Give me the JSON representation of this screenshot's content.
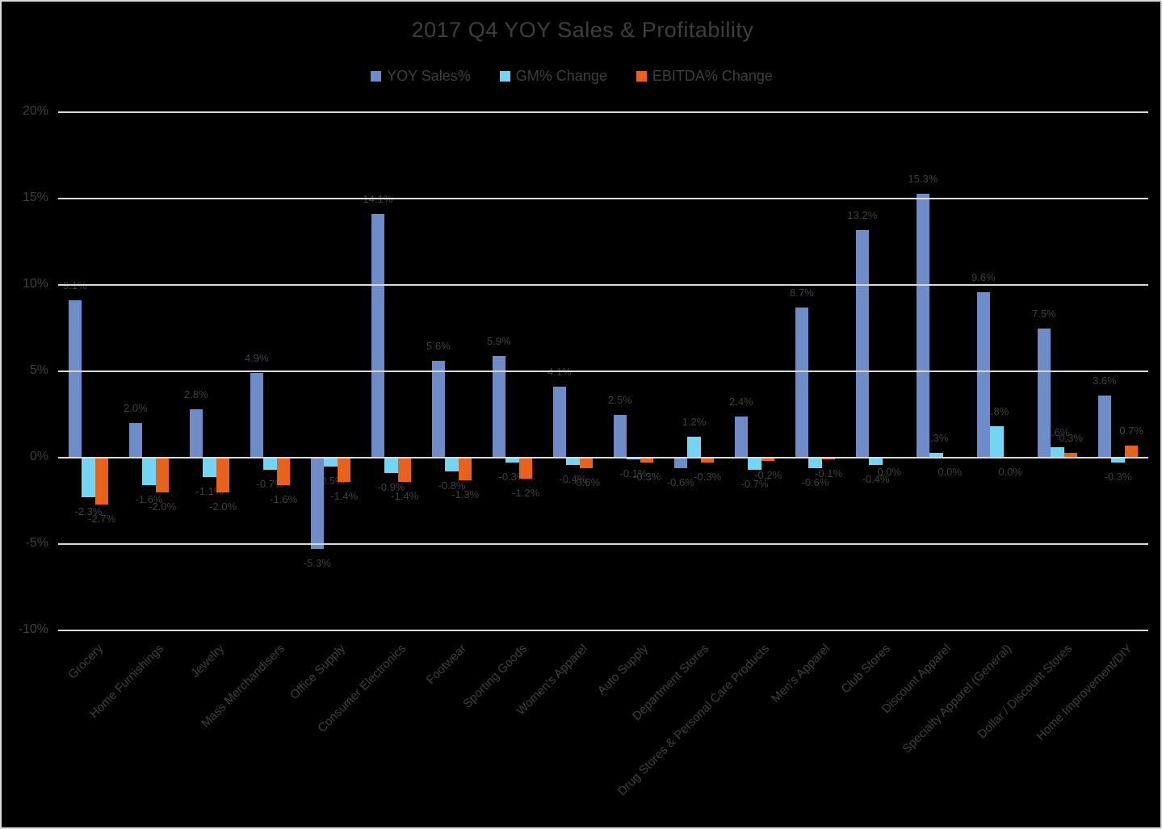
{
  "title": "2017 Q4 YOY Sales & Profitability",
  "chart_data": {
    "type": "bar",
    "title": "2017 Q4 YOY Sales & Profitability",
    "categories": [
      "Grocery",
      "Home Furnishings",
      "Jewelry",
      "Mass Merchandisers",
      "Office Supply",
      "Consumer Electronics",
      "Footwear",
      "Sporting Goods",
      "Women's Apparel",
      "Auto Supply",
      "Department Stores",
      "Drug Stores & Personal Care Products",
      "Men's Apparel",
      "Club Stores",
      "Discount Apparel",
      "Specialty Apparel (General)",
      "Dollar / Discount Stores",
      "Home Improvement/DIY"
    ],
    "series": [
      {
        "name": "YOY Sales%",
        "color": "#6d8cc8",
        "values": [
          9.1,
          2.0,
          2.8,
          4.9,
          -5.3,
          14.1,
          5.6,
          5.9,
          4.1,
          2.5,
          -0.6,
          2.4,
          8.7,
          13.2,
          15.3,
          9.6,
          7.5,
          3.6
        ]
      },
      {
        "name": "GM% Change",
        "color": "#74d5f2",
        "values": [
          -2.3,
          -1.6,
          -1.1,
          -0.7,
          -0.5,
          -0.9,
          -0.8,
          -0.3,
          -0.4,
          -0.1,
          1.2,
          -0.7,
          -0.6,
          -0.4,
          0.3,
          1.8,
          0.6,
          -0.3
        ]
      },
      {
        "name": "EBITDA% Change",
        "color": "#e7631d",
        "values": [
          -2.7,
          -2.0,
          -2.0,
          -1.6,
          -1.4,
          -1.4,
          -1.3,
          -1.2,
          -0.6,
          -0.3,
          -0.3,
          -0.2,
          -0.1,
          0.0,
          0.0,
          0.0,
          0.3,
          0.7
        ]
      }
    ],
    "y_axis": {
      "min": -10,
      "max": 20,
      "step": 5,
      "tick_suffix": "%",
      "tick_labels": [
        "20%",
        "15%",
        "10%",
        "5%",
        "0%",
        "-5%",
        "-10%"
      ]
    },
    "data_label_format": "one-decimal-percent",
    "legend_position": "top",
    "grid": true,
    "xlabel": "",
    "ylabel": ""
  },
  "colors": {
    "background": "#000000",
    "gridline": "#d9d9d9",
    "border": "#d9d9d9",
    "text": "#3f3f3f",
    "series_blue": "#6d8cc8",
    "series_lightblue": "#74d5f2",
    "series_orange": "#e7631d"
  }
}
